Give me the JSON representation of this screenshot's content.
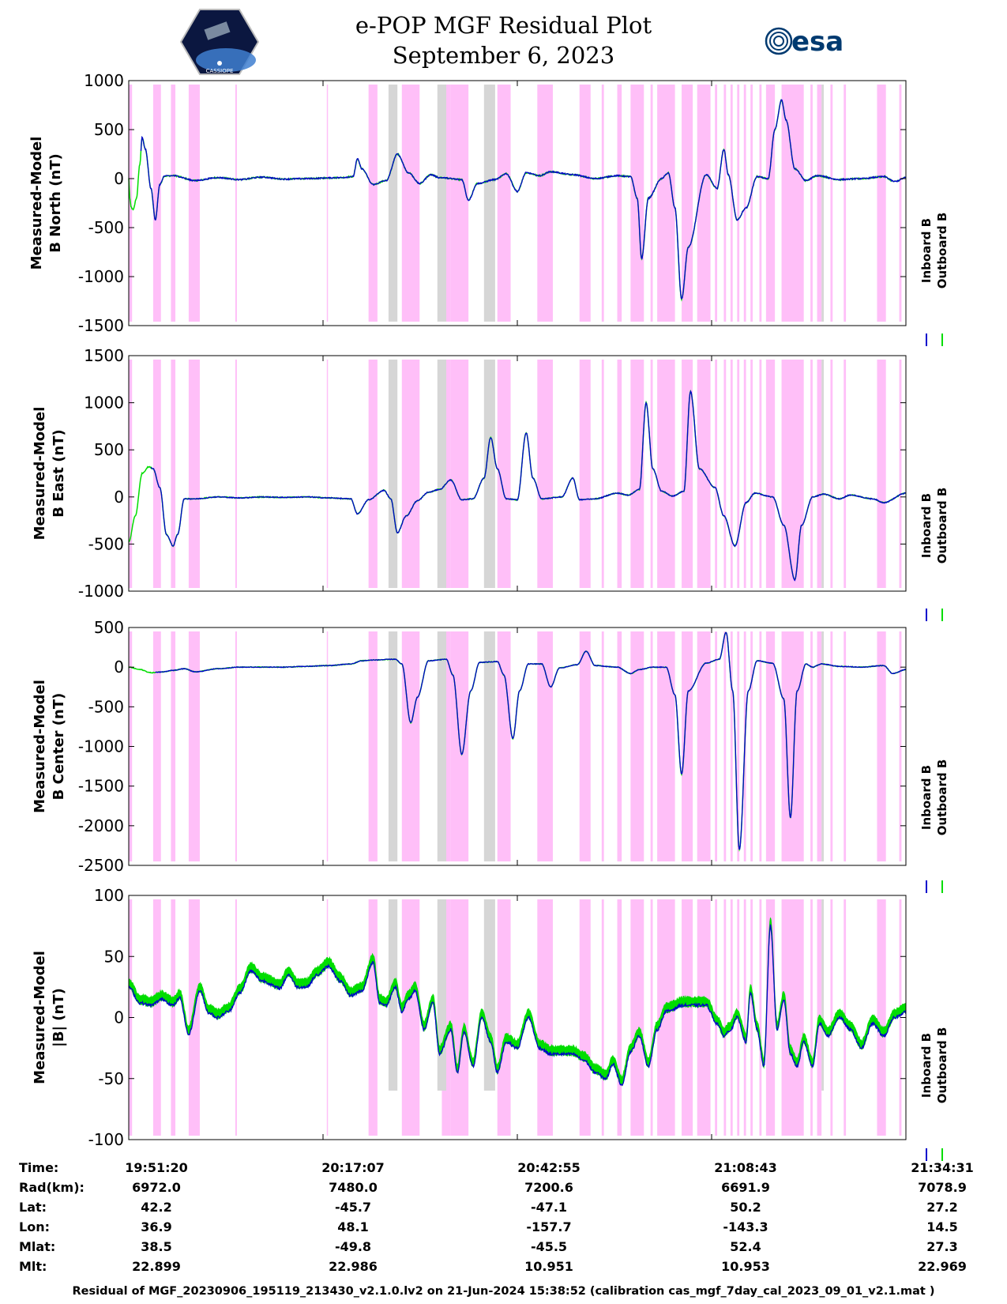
{
  "header": {
    "title": "e-POP MGF Residual Plot",
    "date": "September 6, 2023",
    "logo_left_text": "CASSIOPE",
    "logo_right_text": "esa"
  },
  "colors": {
    "inboard": "#0000cc",
    "outboard": "#00dd00",
    "shade_pink": "#ffbff8",
    "shade_gray": "#d6d6d6"
  },
  "chart_data": [
    {
      "type": "line",
      "ylabel_line1": "Measured-Model",
      "ylabel_line2": "B North (nT)",
      "ylim": [
        -1500,
        1000
      ],
      "yticks": [
        1000,
        500,
        0,
        -500,
        -1000,
        -1500
      ],
      "legend": [
        "Inboard B",
        "Outboard B"
      ],
      "key": [
        [
          0,
          0
        ],
        [
          0.05,
          -200
        ],
        [
          0.1,
          -290
        ],
        [
          0.2,
          -320
        ],
        [
          0.35,
          -200
        ],
        [
          0.5,
          150
        ],
        [
          0.6,
          420
        ],
        [
          0.75,
          300
        ],
        [
          1,
          -100
        ],
        [
          1.2,
          -420
        ],
        [
          1.4,
          -60
        ],
        [
          1.6,
          25
        ],
        [
          2,
          30
        ],
        [
          3,
          -20
        ],
        [
          4,
          10
        ],
        [
          5,
          -10
        ],
        [
          6,
          15
        ],
        [
          7,
          -5
        ],
        [
          8,
          0
        ],
        [
          9.5,
          10
        ],
        [
          10.1,
          20
        ],
        [
          10.3,
          200
        ],
        [
          10.5,
          100
        ],
        [
          11,
          -60
        ],
        [
          11.6,
          -20
        ],
        [
          12.1,
          250
        ],
        [
          12.6,
          60
        ],
        [
          13.1,
          -50
        ],
        [
          13.6,
          40
        ],
        [
          14,
          10
        ],
        [
          15,
          -10
        ],
        [
          15.3,
          -220
        ],
        [
          15.7,
          -50
        ],
        [
          16.5,
          -10
        ],
        [
          17,
          50
        ],
        [
          17.5,
          -130
        ],
        [
          17.9,
          60
        ],
        [
          18.5,
          30
        ],
        [
          19,
          70
        ],
        [
          20,
          40
        ],
        [
          21,
          0
        ],
        [
          22,
          30
        ],
        [
          22.6,
          20
        ],
        [
          22.9,
          -200
        ],
        [
          23.1,
          -820
        ],
        [
          23.4,
          -200
        ],
        [
          24,
          0
        ],
        [
          24.3,
          60
        ],
        [
          24.6,
          -300
        ],
        [
          24.9,
          -1230
        ],
        [
          25.2,
          -700
        ],
        [
          26,
          40
        ],
        [
          26.5,
          -100
        ],
        [
          26.8,
          300
        ],
        [
          27,
          40
        ],
        [
          27.4,
          -420
        ],
        [
          27.8,
          -300
        ],
        [
          28.3,
          20
        ],
        [
          28.8,
          0
        ],
        [
          29.1,
          500
        ],
        [
          29.4,
          800
        ],
        [
          29.6,
          600
        ],
        [
          30,
          100
        ],
        [
          30.5,
          -20
        ],
        [
          31,
          30
        ],
        [
          32,
          -10
        ],
        [
          33,
          0
        ],
        [
          34,
          20
        ],
        [
          34.5,
          -30
        ],
        [
          35,
          10
        ]
      ],
      "key_outboard": [
        [
          0,
          0
        ],
        [
          0.2,
          -330
        ],
        [
          0.35,
          -200
        ],
        [
          0.55,
          200
        ]
      ],
      "noise": 14
    },
    {
      "type": "line",
      "ylabel_line1": "Measured-Model",
      "ylabel_line2": "B East (nT)",
      "ylim": [
        -1000,
        1500
      ],
      "yticks": [
        1500,
        1000,
        500,
        0,
        -500,
        -1000
      ],
      "legend": [
        "Inboard B",
        "Outboard B"
      ],
      "key": [
        [
          0,
          -480
        ],
        [
          0.3,
          -200
        ],
        [
          0.6,
          250
        ],
        [
          0.9,
          320
        ],
        [
          1.1,
          300
        ],
        [
          1.4,
          100
        ],
        [
          1.7,
          -400
        ],
        [
          2,
          -520
        ],
        [
          2.2,
          -400
        ],
        [
          2.5,
          -20
        ],
        [
          3,
          -20
        ],
        [
          4,
          0
        ],
        [
          5,
          -10
        ],
        [
          6,
          0
        ],
        [
          7,
          -5
        ],
        [
          8,
          0
        ],
        [
          9,
          -10
        ],
        [
          10,
          -20
        ],
        [
          10.3,
          -180
        ],
        [
          10.8,
          -30
        ],
        [
          11.5,
          70
        ],
        [
          11.8,
          -20
        ],
        [
          12.1,
          -380
        ],
        [
          12.5,
          -200
        ],
        [
          13,
          -40
        ],
        [
          13.5,
          50
        ],
        [
          14,
          80
        ],
        [
          14.5,
          180
        ],
        [
          15,
          -30
        ],
        [
          15.5,
          -20
        ],
        [
          16,
          200
        ],
        [
          16.3,
          630
        ],
        [
          16.6,
          300
        ],
        [
          17,
          -20
        ],
        [
          17.5,
          -30
        ],
        [
          17.9,
          680
        ],
        [
          18.2,
          200
        ],
        [
          18.6,
          -20
        ],
        [
          19.5,
          0
        ],
        [
          20,
          200
        ],
        [
          20.3,
          -30
        ],
        [
          21,
          -20
        ],
        [
          22,
          40
        ],
        [
          22.5,
          20
        ],
        [
          23,
          80
        ],
        [
          23.3,
          1000
        ],
        [
          23.6,
          300
        ],
        [
          24,
          60
        ],
        [
          24.5,
          10
        ],
        [
          25,
          60
        ],
        [
          25.3,
          1120
        ],
        [
          25.7,
          300
        ],
        [
          26.4,
          100
        ],
        [
          26.8,
          -200
        ],
        [
          27.3,
          -520
        ],
        [
          27.8,
          -60
        ],
        [
          28.2,
          40
        ],
        [
          29,
          0
        ],
        [
          29.5,
          -300
        ],
        [
          30,
          -880
        ],
        [
          30.3,
          -300
        ],
        [
          30.8,
          0
        ],
        [
          31.3,
          30
        ],
        [
          32,
          -20
        ],
        [
          32.5,
          20
        ],
        [
          33.5,
          -20
        ],
        [
          34,
          -60
        ],
        [
          35,
          40
        ]
      ],
      "key_outboard": [
        [
          0,
          -480
        ],
        [
          0.3,
          -150
        ],
        [
          0.7,
          300
        ],
        [
          1,
          320
        ]
      ],
      "noise": 10
    },
    {
      "type": "line",
      "ylabel_line1": "Measured-Model",
      "ylabel_line2": "B Center (nT)",
      "ylim": [
        -2500,
        500
      ],
      "yticks": [
        500,
        0,
        -500,
        -1000,
        -1500,
        -2000,
        -2500
      ],
      "legend": [
        "Inboard B",
        "Outboard B"
      ],
      "key": [
        [
          0,
          0
        ],
        [
          0.5,
          -30
        ],
        [
          1,
          -70
        ],
        [
          1.5,
          -60
        ],
        [
          2,
          -40
        ],
        [
          2.5,
          -20
        ],
        [
          3,
          -60
        ],
        [
          4,
          -20
        ],
        [
          5,
          0
        ],
        [
          6,
          0
        ],
        [
          7,
          0
        ],
        [
          8,
          10
        ],
        [
          9,
          20
        ],
        [
          10,
          40
        ],
        [
          10.5,
          80
        ],
        [
          11,
          90
        ],
        [
          12,
          100
        ],
        [
          12.3,
          40
        ],
        [
          12.7,
          -700
        ],
        [
          13,
          -380
        ],
        [
          13.5,
          80
        ],
        [
          14.3,
          100
        ],
        [
          14.6,
          -100
        ],
        [
          15,
          -1100
        ],
        [
          15.4,
          -300
        ],
        [
          15.8,
          60
        ],
        [
          16.6,
          70
        ],
        [
          16.9,
          -100
        ],
        [
          17.3,
          -900
        ],
        [
          17.6,
          -300
        ],
        [
          18,
          40
        ],
        [
          18.6,
          40
        ],
        [
          19,
          -250
        ],
        [
          19.4,
          -10
        ],
        [
          20.2,
          30
        ],
        [
          20.6,
          200
        ],
        [
          21,
          20
        ],
        [
          22,
          0
        ],
        [
          22.6,
          -80
        ],
        [
          23,
          -30
        ],
        [
          23.6,
          0
        ],
        [
          24.2,
          0
        ],
        [
          24.6,
          -350
        ],
        [
          24.9,
          -1350
        ],
        [
          25.2,
          -300
        ],
        [
          26,
          50
        ],
        [
          26.6,
          100
        ],
        [
          26.9,
          440
        ],
        [
          27.2,
          -300
        ],
        [
          27.5,
          -2300
        ],
        [
          27.9,
          -300
        ],
        [
          28.3,
          80
        ],
        [
          29,
          50
        ],
        [
          29.5,
          -400
        ],
        [
          29.8,
          -1900
        ],
        [
          30.1,
          -300
        ],
        [
          30.5,
          40
        ],
        [
          30.8,
          0
        ],
        [
          31.2,
          40
        ],
        [
          32,
          10
        ],
        [
          33,
          0
        ],
        [
          34,
          20
        ],
        [
          34.4,
          -80
        ],
        [
          35,
          -30
        ]
      ],
      "key_outboard": [
        [
          0,
          0
        ],
        [
          0.5,
          -40
        ],
        [
          1.2,
          -80
        ]
      ],
      "noise": 9
    },
    {
      "type": "line",
      "ylabel_line1": "Measured-Model",
      "ylabel_line2": "|B| (nT)",
      "ylim": [
        -100,
        100
      ],
      "yticks": [
        100,
        50,
        0,
        -50,
        -100
      ],
      "legend": [
        "Inboard B",
        "Outboard B"
      ],
      "key": [
        [
          0,
          25
        ],
        [
          0.5,
          12
        ],
        [
          1,
          10
        ],
        [
          1.5,
          15
        ],
        [
          2,
          10
        ],
        [
          2.3,
          16
        ],
        [
          2.7,
          -14
        ],
        [
          3.2,
          22
        ],
        [
          3.6,
          4
        ],
        [
          4,
          0
        ],
        [
          4.5,
          5
        ],
        [
          5,
          20
        ],
        [
          5.5,
          38
        ],
        [
          6,
          30
        ],
        [
          6.8,
          24
        ],
        [
          7.2,
          35
        ],
        [
          7.6,
          25
        ],
        [
          8,
          25
        ],
        [
          8.5,
          35
        ],
        [
          9,
          42
        ],
        [
          9.5,
          30
        ],
        [
          10,
          18
        ],
        [
          10.5,
          22
        ],
        [
          11,
          45
        ],
        [
          11.3,
          12
        ],
        [
          11.6,
          10
        ],
        [
          12,
          25
        ],
        [
          12.3,
          5
        ],
        [
          12.6,
          15
        ],
        [
          12.9,
          22
        ],
        [
          13.3,
          -10
        ],
        [
          13.7,
          12
        ],
        [
          14,
          -30
        ],
        [
          14.5,
          -10
        ],
        [
          14.8,
          -45
        ],
        [
          15.1,
          -12
        ],
        [
          15.5,
          -40
        ],
        [
          15.9,
          0
        ],
        [
          16.3,
          -20
        ],
        [
          16.6,
          -45
        ],
        [
          17,
          -20
        ],
        [
          17.5,
          -25
        ],
        [
          18,
          0
        ],
        [
          18.5,
          -25
        ],
        [
          19,
          -30
        ],
        [
          20,
          -30
        ],
        [
          20.5,
          -35
        ],
        [
          21,
          -45
        ],
        [
          21.5,
          -50
        ],
        [
          21.8,
          -38
        ],
        [
          22.2,
          -55
        ],
        [
          22.6,
          -28
        ],
        [
          23,
          -15
        ],
        [
          23.4,
          -40
        ],
        [
          23.8,
          -10
        ],
        [
          24.2,
          5
        ],
        [
          25,
          10
        ],
        [
          25.5,
          10
        ],
        [
          26,
          10
        ],
        [
          26.5,
          -5
        ],
        [
          26.8,
          -15
        ],
        [
          27.1,
          -10
        ],
        [
          27.4,
          0
        ],
        [
          27.8,
          -20
        ],
        [
          28,
          20
        ],
        [
          28.3,
          -10
        ],
        [
          28.6,
          -40
        ],
        [
          28.9,
          75
        ],
        [
          29.2,
          -10
        ],
        [
          29.5,
          15
        ],
        [
          29.8,
          -30
        ],
        [
          30.1,
          -40
        ],
        [
          30.4,
          -20
        ],
        [
          30.8,
          -40
        ],
        [
          31.1,
          -5
        ],
        [
          31.5,
          -15
        ],
        [
          32,
          0
        ],
        [
          32.5,
          -10
        ],
        [
          33,
          -25
        ],
        [
          33.5,
          -5
        ],
        [
          34,
          -15
        ],
        [
          34.5,
          0
        ],
        [
          35,
          5
        ]
      ],
      "key_outboard": [],
      "noise": 2.5,
      "outboard_band": 3.5
    }
  ],
  "shading": {
    "pink_spans": [
      [
        0,
        0.15
      ],
      [
        1.1,
        1.45
      ],
      [
        1.9,
        2.1
      ],
      [
        2.7,
        3.2
      ],
      [
        4.8,
        4.87
      ],
      [
        8.92,
        8.97
      ],
      [
        10.8,
        11.2
      ],
      [
        12.3,
        13.1
      ],
      [
        14.1,
        14.5
      ],
      [
        14.5,
        15.3
      ],
      [
        16.6,
        17.2
      ],
      [
        18.4,
        19.1
      ],
      [
        20.3,
        20.8
      ],
      [
        21.3,
        21.4
      ],
      [
        22.0,
        22.2
      ],
      [
        22.6,
        23.2
      ],
      [
        23.5,
        23.6
      ],
      [
        23.8,
        24.6
      ],
      [
        24.9,
        25.4
      ],
      [
        25.6,
        26.2
      ],
      [
        26.4,
        26.5
      ],
      [
        26.8,
        26.9
      ],
      [
        27.1,
        27.2
      ],
      [
        27.4,
        27.5
      ],
      [
        27.7,
        27.8
      ],
      [
        28.0,
        28.1
      ],
      [
        28.4,
        28.5
      ],
      [
        28.7,
        29.1
      ],
      [
        29.4,
        30.4
      ],
      [
        30.7,
        30.8
      ],
      [
        31.0,
        31.2
      ],
      [
        31.6,
        31.7
      ],
      [
        32.2,
        32.3
      ],
      [
        33.7,
        34.1
      ],
      [
        34.7,
        34.8
      ]
    ],
    "gray_spans": [
      [
        11.7,
        12.1
      ],
      [
        13.9,
        14.3
      ],
      [
        16.0,
        16.5
      ],
      [
        31.2,
        31.3
      ]
    ]
  },
  "table": {
    "rows": [
      {
        "label": "Time:",
        "values": [
          "19:51:20",
          "20:17:07",
          "20:42:55",
          "21:08:43",
          "21:34:31"
        ]
      },
      {
        "label": "Rad(km):",
        "values": [
          "6972.0",
          "7480.0",
          "7200.6",
          "6691.9",
          "7078.9"
        ]
      },
      {
        "label": "Lat:",
        "values": [
          "42.2",
          "-45.7",
          "-47.1",
          "50.2",
          "27.2"
        ]
      },
      {
        "label": "Lon:",
        "values": [
          "36.9",
          "48.1",
          "-157.7",
          "-143.3",
          "14.5"
        ]
      },
      {
        "label": "Mlat:",
        "values": [
          "38.5",
          "-49.8",
          "-45.5",
          "52.4",
          "27.3"
        ]
      },
      {
        "label": "Mlt:",
        "values": [
          "22.899",
          "22.986",
          "10.951",
          "10.953",
          "22.969"
        ]
      }
    ]
  },
  "footer": "Residual of MGF_20230906_195119_213430_v2.1.0.lv2 on 21-Jun-2024 15:38:52 (calibration cas_mgf_7day_cal_2023_09_01_v2.1.mat )"
}
